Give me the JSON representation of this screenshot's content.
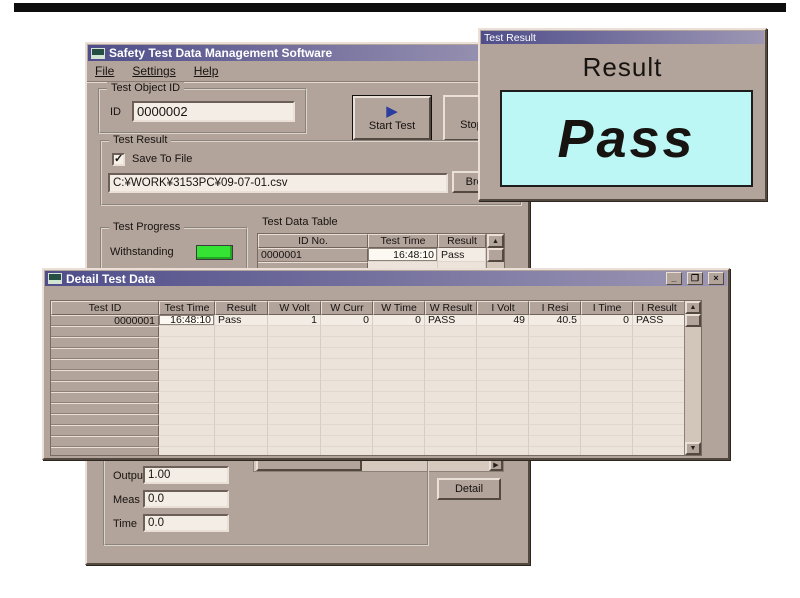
{
  "main_window": {
    "title": "Safety Test Data Management Software",
    "menu": [
      "File",
      "Settings",
      "Help"
    ],
    "test_object_id": {
      "label": "Test Object ID",
      "id_label": "ID",
      "id_value": "0000002"
    },
    "start_button": "Start Test",
    "stop_button": "Stop Test",
    "test_result": {
      "label": "Test Result",
      "save_checkbox_label": "Save To File",
      "save_checkbox_checked": true,
      "file_path": "C:¥WORK¥3153PC¥09-07-01.csv",
      "browse_button": "Browse"
    },
    "test_progress": {
      "label": "Test Progress",
      "status": "Withstanding",
      "led_color": "#35e335"
    },
    "test_data_table": {
      "label": "Test Data Table",
      "headers": [
        "ID No.",
        "Test Time",
        "Result"
      ],
      "rows": [
        [
          "0000001",
          "16:48:10",
          "Pass"
        ]
      ],
      "empty_rows": 13
    },
    "measurements": {
      "output_label": "Output",
      "output_value": "1.00",
      "meas_label": "Meas",
      "meas_value": "0.0",
      "time_label": "Time",
      "time_value": "0.0"
    },
    "detail_button": "Detail"
  },
  "result_popup": {
    "title": "Test Result",
    "heading": "Result",
    "value": "Pass",
    "panel_color": "#bdf7f5"
  },
  "detail_window": {
    "title": "Detail Test Data",
    "table": {
      "headers": [
        "Test ID",
        "Test Time",
        "Result",
        "W Volt",
        "W Curr",
        "W Time",
        "W Result",
        "I Volt",
        "I Resi",
        "I Time",
        "I Result"
      ],
      "rows": [
        [
          "0000001",
          "16:48:10",
          "Pass",
          "1",
          "0",
          "0",
          "PASS",
          "49",
          "40.5",
          "0",
          "PASS"
        ]
      ],
      "empty_rows": 12
    }
  },
  "icons": {
    "minimize": "_",
    "maximize": "❐",
    "close": "×",
    "scroll_up": "▲",
    "scroll_down": "▼",
    "scroll_right": "▶",
    "start": "▶",
    "stop": "■",
    "check": "✓"
  },
  "colors": {
    "face": "#b2a39b",
    "titlebar_left": "#4f4e8a",
    "titlebar_right": "#9d97b4",
    "led_green": "#35e335",
    "result_panel_cyan": "#bdf7f5"
  }
}
